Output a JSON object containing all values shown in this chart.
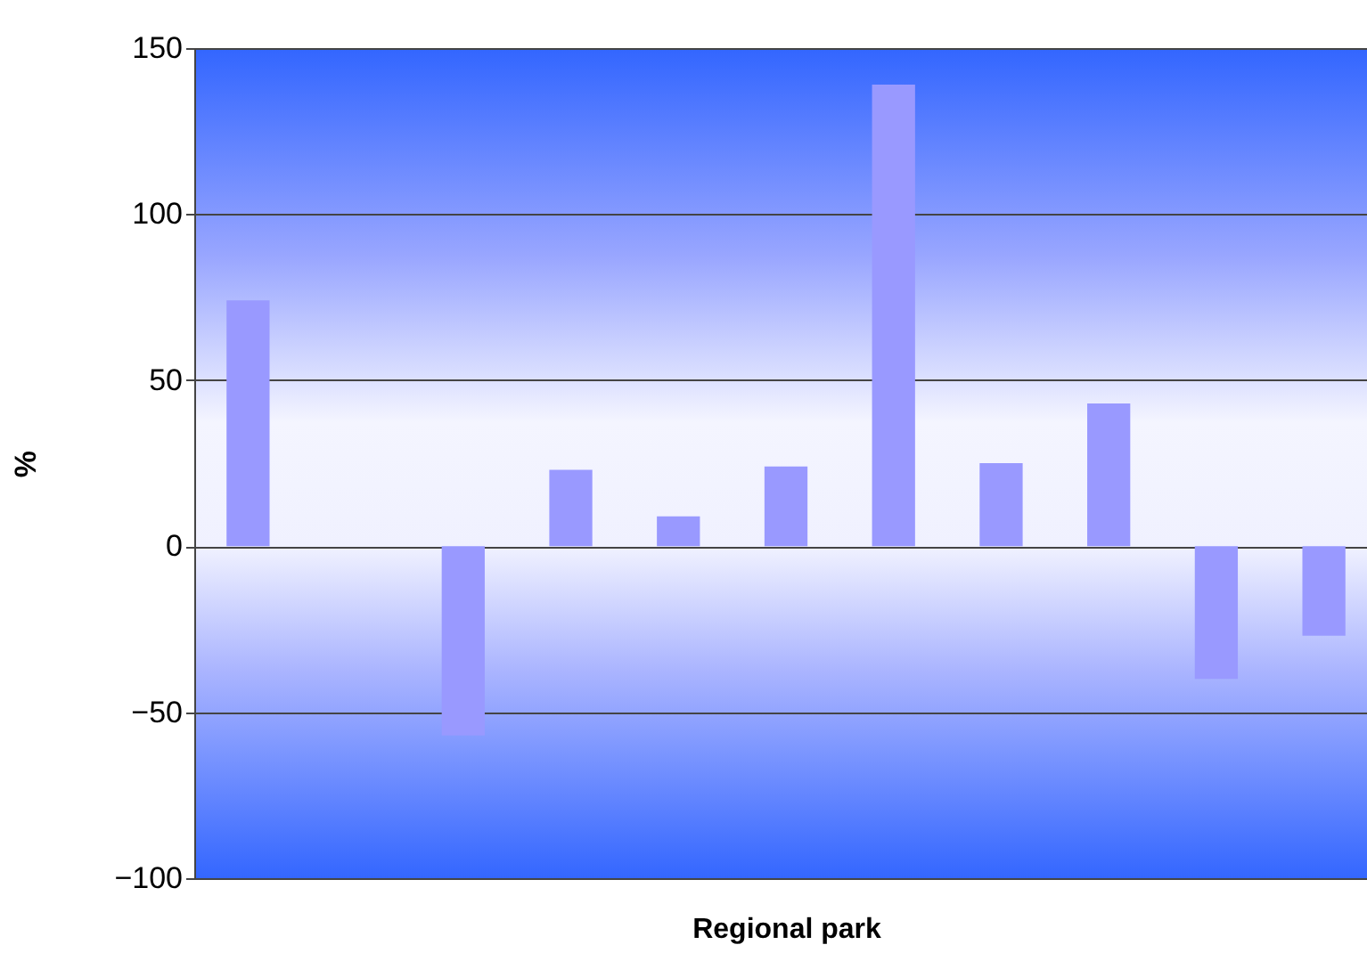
{
  "chart_data": {
    "type": "bar",
    "xlabel": "Regional park",
    "ylabel": "%",
    "categories": [
      null,
      null,
      null,
      null,
      null,
      null,
      null,
      null,
      null,
      null,
      null
    ],
    "values": [
      74,
      0,
      -57,
      23,
      9,
      24,
      139,
      25,
      43,
      -40,
      -27
    ],
    "color": "#9999ff",
    "ylim": [
      -100,
      150
    ],
    "yticks": [
      -100,
      -50,
      0,
      50,
      100,
      150
    ],
    "grid": "y"
  }
}
